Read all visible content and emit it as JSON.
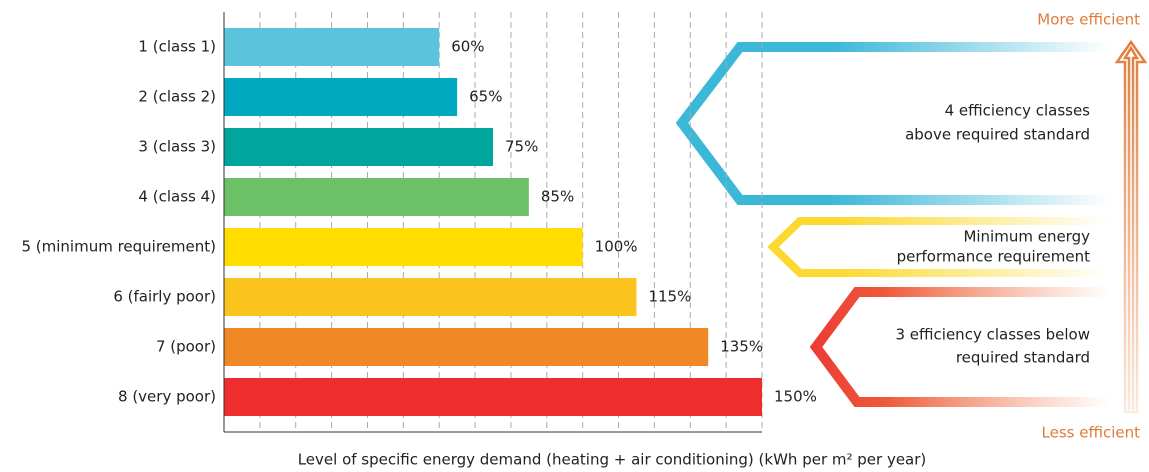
{
  "chart_data": {
    "type": "bar",
    "orientation": "horizontal",
    "categories": [
      "1 (class 1)",
      "2 (class 2)",
      "3 (class 3)",
      "4 (class 4)",
      "5 (minimum requirement)",
      "6 (fairly poor)",
      "7 (poor)",
      "8 (very poor)"
    ],
    "values": [
      60,
      65,
      75,
      85,
      100,
      115,
      135,
      150
    ],
    "value_labels": [
      "60%",
      "65%",
      "75%",
      "85%",
      "100%",
      "115%",
      "135%",
      "150%"
    ],
    "colors": [
      "#5bc4dd",
      "#00a9c0",
      "#00a69d",
      "#6cc067",
      "#ffdd00",
      "#fbc31e",
      "#f18826",
      "#ed2d2e"
    ],
    "xlim": [
      0,
      150
    ],
    "xticks": [
      10,
      20,
      30,
      40,
      50,
      60,
      70,
      80,
      90,
      100,
      110,
      120,
      130,
      140,
      150
    ],
    "grid": true,
    "x_label": "Level of specific energy demand (heating + air conditioning) (kWh per m² per year)",
    "annotations": {
      "top": "More efficient",
      "bottom": "Less efficient",
      "above_standard": [
        "4 efficiency classes",
        "above required standard"
      ],
      "minimum": [
        "Minimum energy",
        "performance requirement"
      ],
      "below_standard": [
        "3 efficiency classes below",
        "required standard"
      ]
    }
  }
}
